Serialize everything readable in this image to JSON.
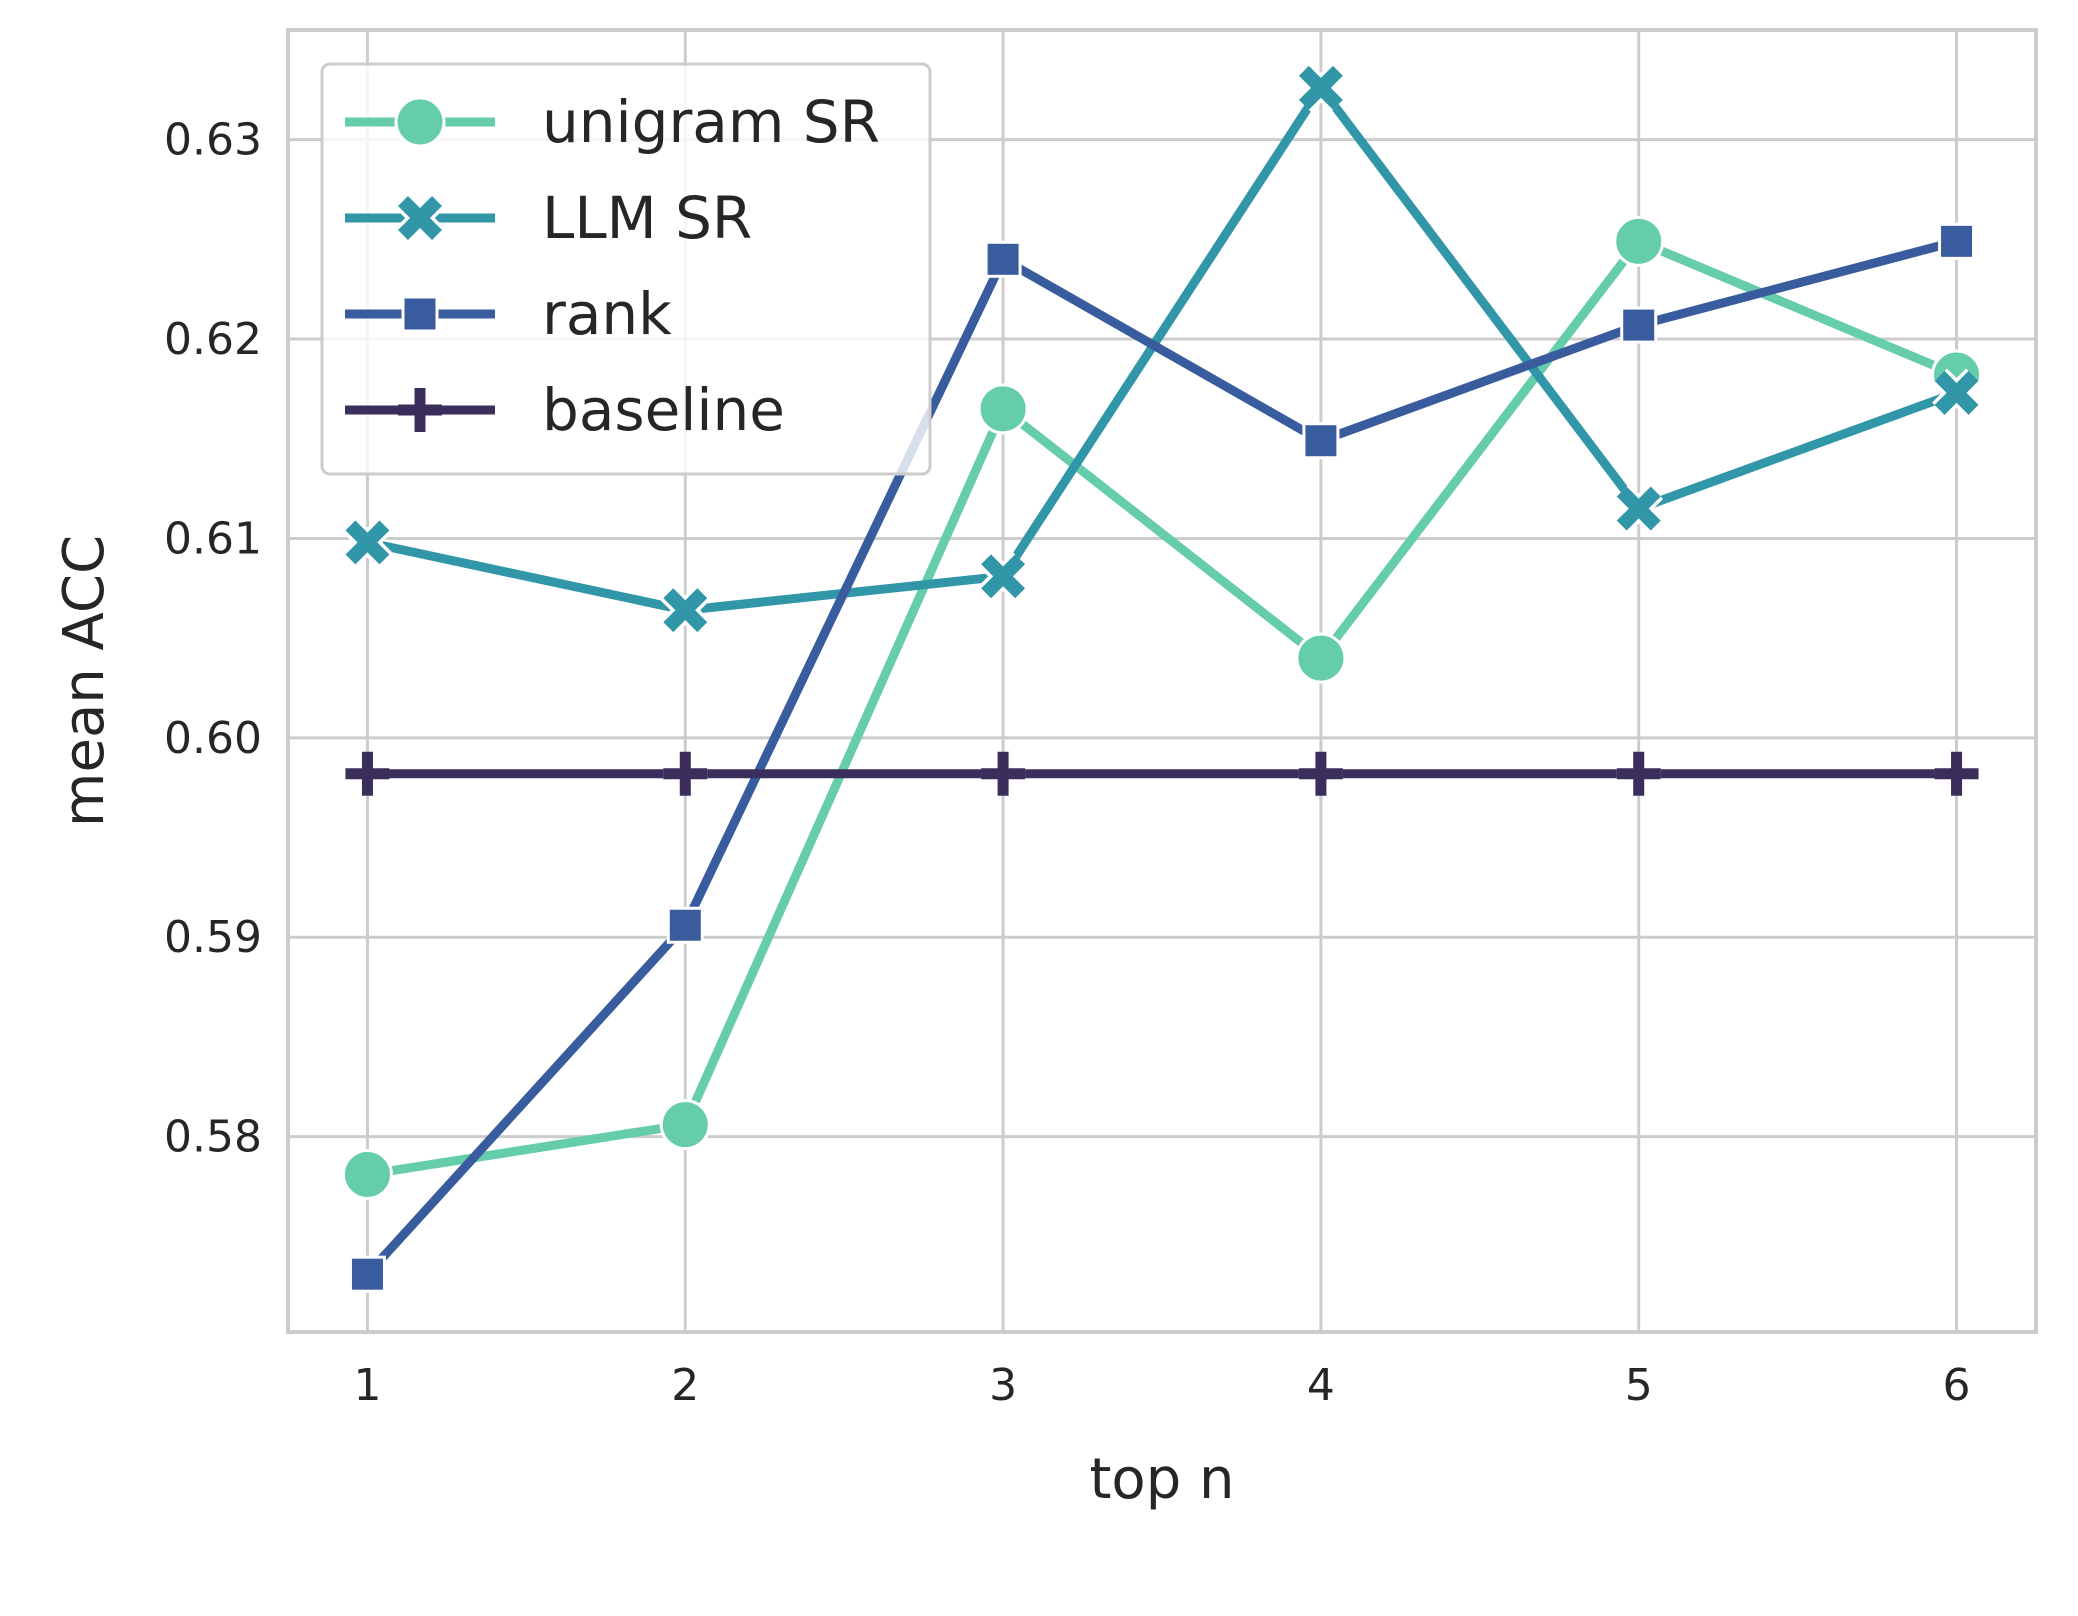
{
  "chart_data": {
    "type": "line",
    "xlabel": "top n",
    "ylabel": "mean ACC",
    "x": [
      1,
      2,
      3,
      4,
      5,
      6
    ],
    "xlim": [
      0.75,
      6.25
    ],
    "ylim": [
      0.5702,
      0.6355
    ],
    "xticks": [
      "1",
      "2",
      "3",
      "4",
      "5",
      "6"
    ],
    "yticks": [
      0.58,
      0.59,
      0.6,
      0.61,
      0.62,
      0.63
    ],
    "ytick_labels": [
      "0.58",
      "0.59",
      "0.60",
      "0.61",
      "0.62",
      "0.63"
    ],
    "grid": true,
    "legend_position": "top-left",
    "series": [
      {
        "name": "unigram SR",
        "marker": "circle",
        "color": "#66cdaa",
        "values": [
          0.5781,
          0.5806,
          0.6165,
          0.604,
          0.6249,
          0.6182
        ]
      },
      {
        "name": "LLM SR",
        "marker": "x",
        "color": "#3096a8",
        "values": [
          0.6098,
          0.6064,
          0.6081,
          0.6326,
          0.6115,
          0.6173
        ]
      },
      {
        "name": "rank",
        "marker": "square",
        "color": "#385c9e",
        "values": [
          0.5731,
          0.5906,
          0.624,
          0.6149,
          0.6207,
          0.6249
        ]
      },
      {
        "name": "baseline",
        "marker": "plus",
        "color": "#3b2d5c",
        "values": [
          0.5982,
          0.5982,
          0.5982,
          0.5982,
          0.5982,
          0.5982
        ]
      }
    ]
  }
}
